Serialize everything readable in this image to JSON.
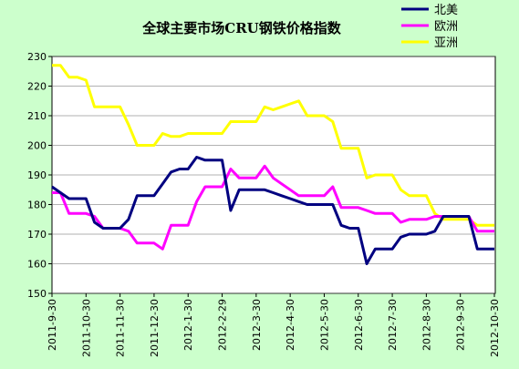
{
  "chart_data": {
    "type": "line",
    "title": "全球主要市场CRU钢铁价格指数",
    "categories": [
      "2011-9-30",
      null,
      null,
      null,
      "2011-10-30",
      null,
      null,
      null,
      "2011-11-30",
      null,
      null,
      null,
      "2011-12-30",
      null,
      null,
      null,
      "2012-1-30",
      null,
      null,
      null,
      "2012-2-29",
      null,
      null,
      null,
      "2012-3-30",
      null,
      null,
      null,
      "2012-4-30",
      null,
      null,
      null,
      "2012-5-30",
      null,
      null,
      null,
      "2012-6-30",
      null,
      null,
      null,
      "2012-7-30",
      null,
      null,
      null,
      "2012-8-30",
      null,
      null,
      null,
      "2012-9-30",
      null,
      null,
      null,
      "2012-10-30"
    ],
    "series": [
      {
        "name": "北美",
        "color": "#000080",
        "values": [
          186,
          184,
          182,
          182,
          182,
          174,
          172,
          172,
          172,
          175,
          183,
          183,
          183,
          187,
          191,
          192,
          192,
          196,
          195,
          195,
          195,
          178,
          185,
          185,
          185,
          185,
          184,
          183,
          182,
          181,
          180,
          180,
          180,
          180,
          173,
          172,
          172,
          160,
          165,
          165,
          165,
          169,
          170,
          170,
          170,
          171,
          176,
          176,
          176,
          176,
          165,
          165,
          165
        ]
      },
      {
        "name": "欧洲",
        "color": "#ff00ff",
        "values": [
          184,
          184,
          177,
          177,
          177,
          176,
          172,
          172,
          172,
          171,
          167,
          167,
          167,
          165,
          173,
          173,
          173,
          181,
          186,
          186,
          186,
          192,
          189,
          189,
          189,
          193,
          189,
          187,
          185,
          183,
          183,
          183,
          183,
          186,
          179,
          179,
          179,
          178,
          177,
          177,
          177,
          174,
          175,
          175,
          175,
          176,
          176,
          176,
          176,
          176,
          171,
          171,
          171
        ]
      },
      {
        "name": "亚洲",
        "color": "#ffff00",
        "values": [
          227,
          227,
          223,
          223,
          222,
          213,
          213,
          213,
          213,
          207,
          200,
          200,
          200,
          204,
          203,
          203,
          204,
          204,
          204,
          204,
          204,
          208,
          208,
          208,
          208,
          213,
          212,
          213,
          214,
          215,
          210,
          210,
          210,
          208,
          199,
          199,
          199,
          189,
          190,
          190,
          190,
          185,
          183,
          183,
          183,
          177,
          175,
          175,
          175,
          175,
          173,
          173,
          173
        ]
      }
    ],
    "ylim": [
      150,
      230
    ],
    "yticks": [
      150,
      160,
      170,
      180,
      190,
      200,
      210,
      220,
      230
    ],
    "grid": true
  }
}
